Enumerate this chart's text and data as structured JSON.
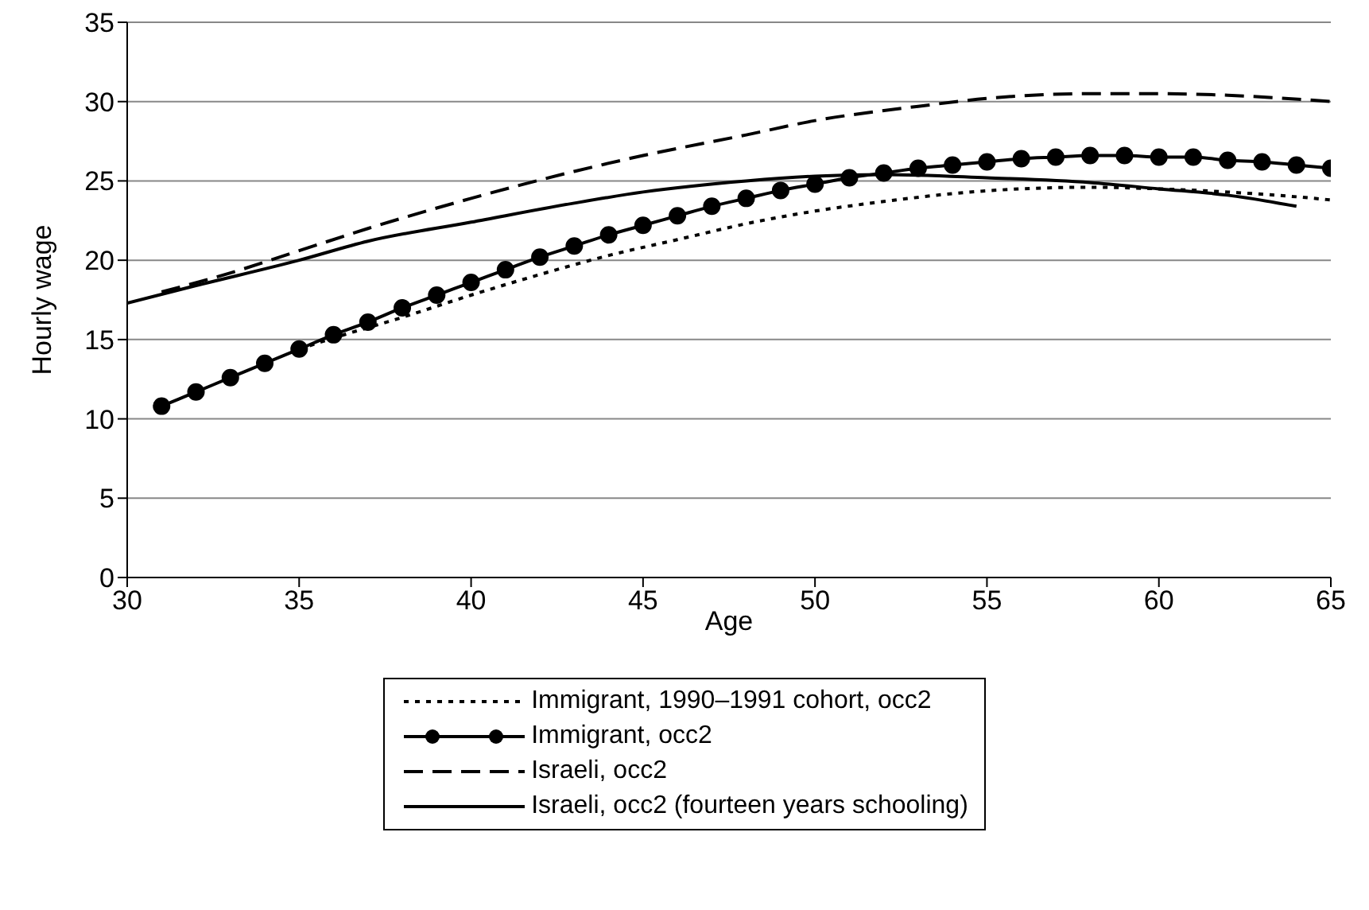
{
  "chart_data": {
    "type": "line",
    "xlabel": "Age",
    "ylabel": "Hourly wage",
    "xlim": [
      30,
      65
    ],
    "xticks": [
      30,
      35,
      40,
      45,
      50,
      55,
      60,
      65
    ],
    "ylim": [
      0,
      35
    ],
    "yticks": [
      0,
      5,
      10,
      15,
      20,
      25,
      30,
      35
    ],
    "grid": "y",
    "legend": "bottom",
    "series": [
      {
        "name": "Immigrant, 1990–1991 cohort, occ2",
        "color": "#000000",
        "line_style": "dotted",
        "marker": "none",
        "x": [
          35,
          36,
          38,
          40,
          42,
          44,
          46,
          48,
          50,
          52,
          54,
          56,
          58,
          60,
          62,
          64,
          65
        ],
        "values": [
          14.4,
          15.1,
          16.4,
          17.8,
          19.1,
          20.3,
          21.3,
          22.3,
          23.1,
          23.7,
          24.2,
          24.5,
          24.6,
          24.5,
          24.3,
          24.0,
          23.8
        ]
      },
      {
        "name": "Immigrant, occ2",
        "color": "#000000",
        "line_style": "solid",
        "marker": "circle",
        "x": [
          31,
          32,
          33,
          34,
          35,
          36,
          37,
          38,
          39,
          40,
          41,
          42,
          43,
          44,
          45,
          46,
          47,
          48,
          49,
          50,
          51,
          52,
          53,
          54,
          55,
          56,
          57,
          58,
          59,
          60,
          61,
          62,
          63,
          64,
          65
        ],
        "values": [
          10.8,
          11.7,
          12.6,
          13.5,
          14.4,
          15.3,
          16.1,
          17.0,
          17.8,
          18.6,
          19.4,
          20.2,
          20.9,
          21.6,
          22.2,
          22.8,
          23.4,
          23.9,
          24.4,
          24.8,
          25.2,
          25.5,
          25.8,
          26.0,
          26.2,
          26.4,
          26.5,
          26.6,
          26.6,
          26.5,
          26.5,
          26.3,
          26.2,
          26.0,
          25.8
        ]
      },
      {
        "name": "Israeli, occ2",
        "color": "#000000",
        "line_style": "dashed",
        "marker": "none",
        "x": [
          31,
          33,
          35,
          37,
          40,
          43,
          45,
          48,
          50,
          53,
          55,
          58,
          60,
          62,
          65
        ],
        "values": [
          18.0,
          19.2,
          20.6,
          22.0,
          23.9,
          25.6,
          26.6,
          27.9,
          28.8,
          29.7,
          30.2,
          30.5,
          30.5,
          30.4,
          30.0
        ]
      },
      {
        "name": "Israeli, occ2 (fourteen years schooling)",
        "color": "#000000",
        "line_style": "solid",
        "marker": "none",
        "x": [
          30,
          32,
          35,
          37,
          40,
          43,
          45,
          48,
          50,
          52,
          55,
          58,
          60,
          62,
          64
        ],
        "values": [
          17.3,
          18.4,
          20.0,
          21.2,
          22.4,
          23.6,
          24.3,
          25.0,
          25.3,
          25.4,
          25.2,
          24.9,
          24.5,
          24.1,
          23.4
        ]
      }
    ]
  }
}
